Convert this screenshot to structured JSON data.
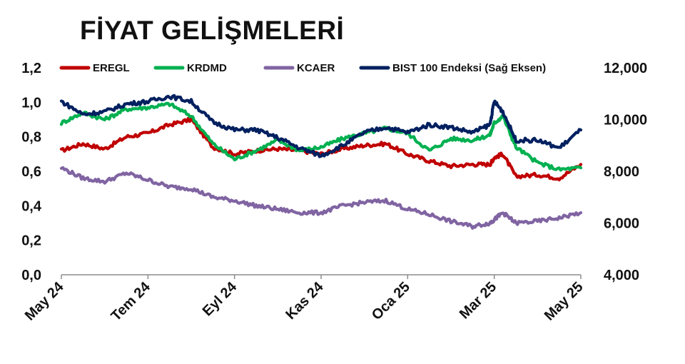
{
  "page_title": "FİYAT GELİŞMELERİ",
  "chart_data": {
    "type": "line",
    "title": "FİYAT GELİŞMELERİ",
    "xlabel": "",
    "ylabel": "",
    "x_tick_labels": [
      "May 24",
      "Tem 24",
      "Eyl 24",
      "Kas 24",
      "Oca 25",
      "Mar 25",
      "May 25"
    ],
    "x_tick_months": [
      0,
      2,
      4,
      6,
      8,
      10,
      12
    ],
    "x_range_months": [
      0,
      12
    ],
    "left_axis": {
      "ylim": [
        0.0,
        1.2
      ],
      "ticks": [
        "0,0",
        "0,2",
        "0,4",
        "0,6",
        "0,8",
        "1,0",
        "1,2"
      ],
      "tick_values": [
        0,
        0.2,
        0.4,
        0.6,
        0.8,
        1.0,
        1.2
      ]
    },
    "right_axis": {
      "label": "Sağ Eksen",
      "ylim": [
        4000,
        12000
      ],
      "ticks": [
        "4,000",
        "6,000",
        "8,000",
        "10,000",
        "12,000"
      ],
      "tick_values": [
        4000,
        6000,
        8000,
        10000,
        12000
      ]
    },
    "grid": false,
    "legend_position": "top",
    "series": [
      {
        "name": "EREGL",
        "axis": "left",
        "color": "#c00000",
        "x": [
          0,
          0.5,
          1,
          1.5,
          2,
          2.5,
          3,
          3.5,
          4,
          4.5,
          5,
          5.5,
          6,
          6.5,
          7,
          7.5,
          8,
          8.5,
          9,
          9.5,
          9.9,
          10,
          10.2,
          10.5,
          11,
          11.5,
          12
        ],
        "y": [
          0.72,
          0.76,
          0.73,
          0.8,
          0.82,
          0.87,
          0.9,
          0.74,
          0.7,
          0.72,
          0.73,
          0.72,
          0.7,
          0.73,
          0.75,
          0.76,
          0.7,
          0.66,
          0.63,
          0.64,
          0.64,
          0.68,
          0.7,
          0.57,
          0.58,
          0.56,
          0.64
        ]
      },
      {
        "name": "KRDMD",
        "axis": "left",
        "color": "#00b050",
        "x": [
          0,
          0.5,
          1,
          1.5,
          2,
          2.5,
          3,
          3.5,
          4,
          4.5,
          5,
          5.5,
          6,
          6.5,
          7,
          7.5,
          8,
          8.5,
          9,
          9.5,
          9.9,
          10,
          10.2,
          10.5,
          11,
          11.5,
          12
        ],
        "y": [
          0.88,
          0.94,
          0.9,
          0.96,
          0.97,
          0.99,
          0.92,
          0.76,
          0.67,
          0.72,
          0.78,
          0.72,
          0.74,
          0.79,
          0.82,
          0.85,
          0.82,
          0.72,
          0.79,
          0.78,
          0.81,
          0.88,
          0.92,
          0.74,
          0.65,
          0.61,
          0.62
        ]
      },
      {
        "name": "KCAER",
        "axis": "left",
        "color": "#8064a2",
        "x": [
          0,
          0.5,
          1,
          1.5,
          2,
          2.5,
          3,
          3.5,
          4,
          4.5,
          5,
          5.5,
          6,
          6.5,
          7,
          7.5,
          8,
          8.5,
          9,
          9.5,
          9.9,
          10,
          10.2,
          10.5,
          11,
          11.5,
          12
        ],
        "y": [
          0.62,
          0.56,
          0.54,
          0.59,
          0.55,
          0.51,
          0.5,
          0.45,
          0.43,
          0.4,
          0.38,
          0.36,
          0.36,
          0.4,
          0.42,
          0.43,
          0.38,
          0.35,
          0.31,
          0.28,
          0.3,
          0.32,
          0.36,
          0.3,
          0.31,
          0.33,
          0.36
        ]
      },
      {
        "name": "BIST 100 Endeksi (Sağ Eksen)",
        "axis": "right",
        "color": "#002060",
        "x": [
          0,
          0.5,
          1,
          1.5,
          2,
          2.5,
          3,
          3.5,
          4,
          4.5,
          5,
          5.5,
          6,
          6.5,
          7,
          7.5,
          8,
          8.5,
          9,
          9.5,
          9.9,
          10,
          10.2,
          10.5,
          11,
          11.5,
          12
        ],
        "y": [
          10700,
          10200,
          10300,
          10600,
          10700,
          10900,
          10700,
          9900,
          9600,
          9600,
          9300,
          8900,
          8600,
          9000,
          9500,
          9700,
          9500,
          9800,
          9700,
          9500,
          9800,
          10700,
          10300,
          9200,
          9200,
          8900,
          9600
        ]
      }
    ]
  }
}
